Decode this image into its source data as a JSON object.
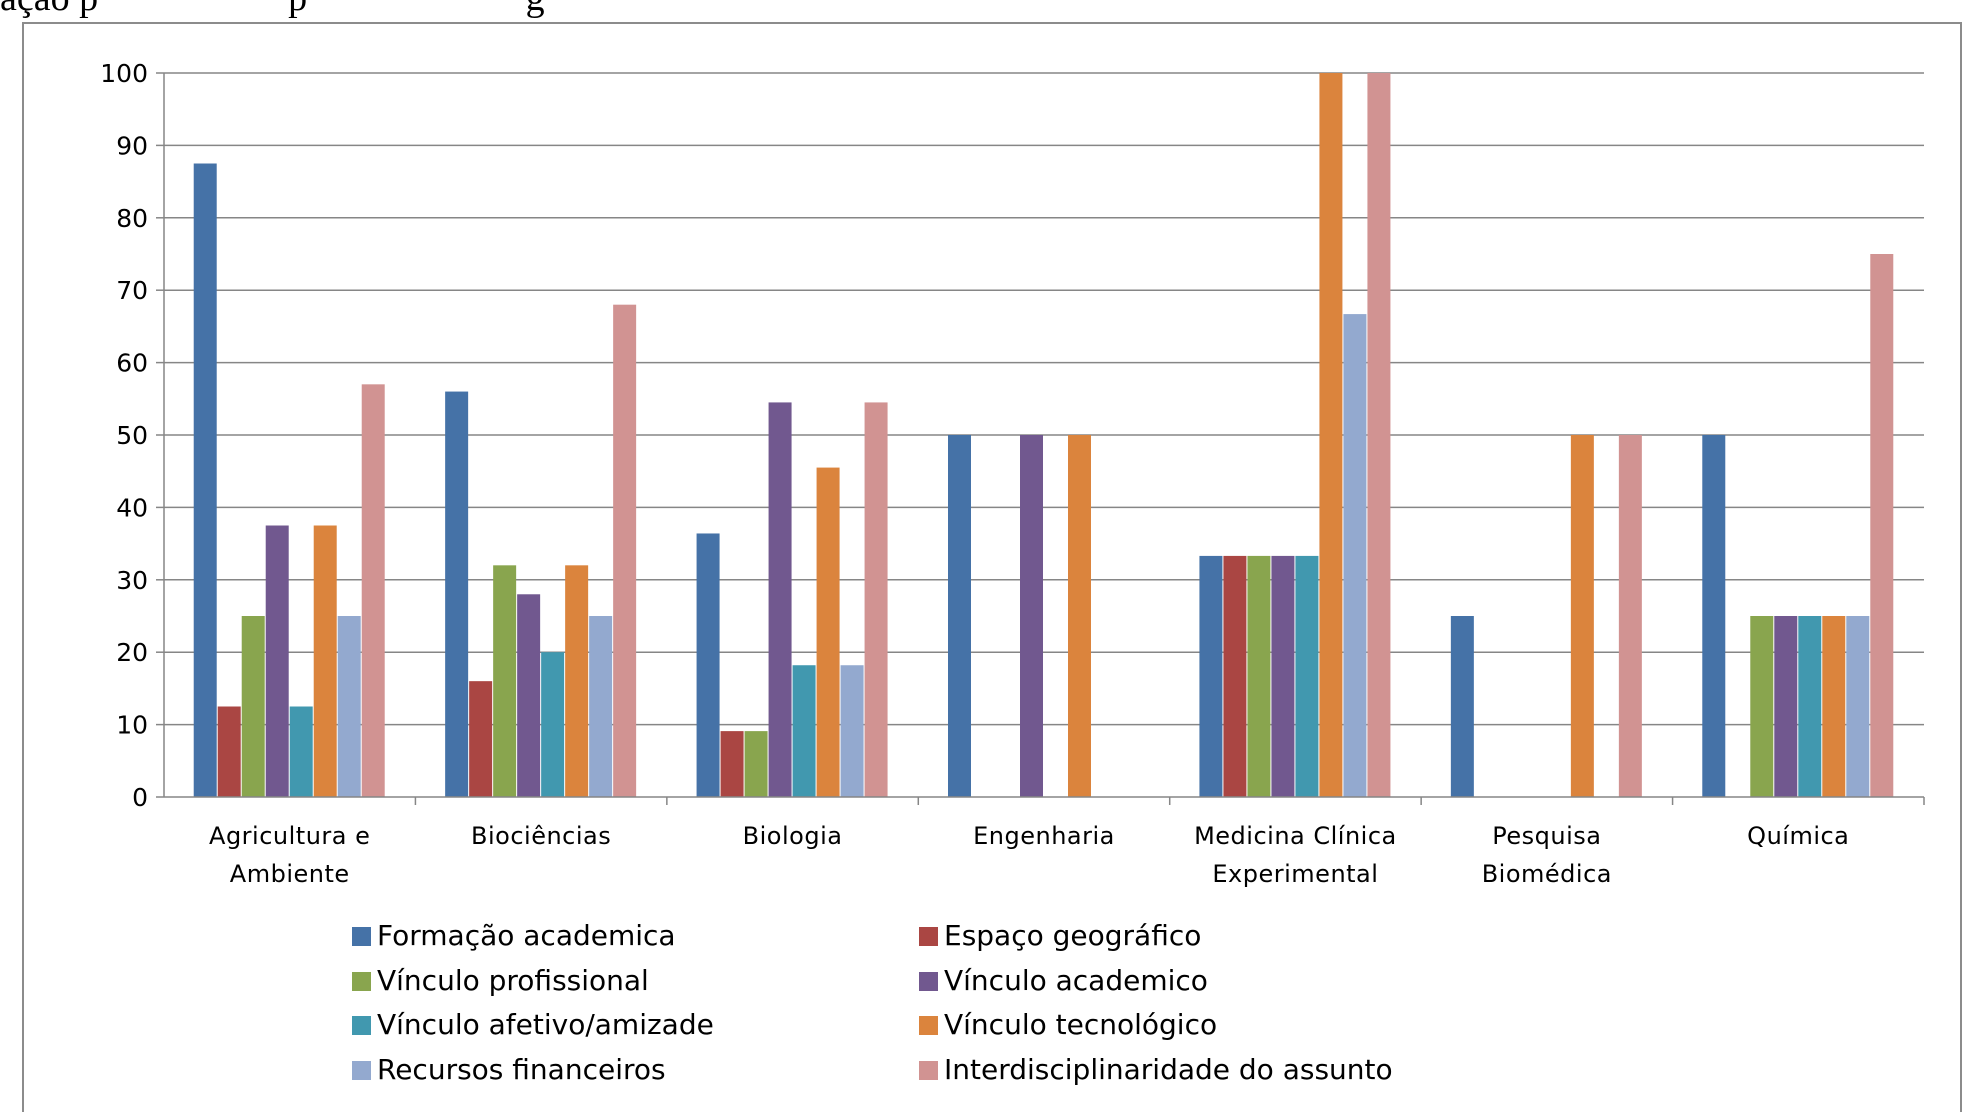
{
  "caption": {
    "visible_fragment": "ação p                    p                       g"
  },
  "chart_data": {
    "type": "bar",
    "title": "",
    "xlabel": "",
    "ylabel": "",
    "ylim": [
      0,
      100
    ],
    "yticks": [
      0,
      10,
      20,
      30,
      40,
      50,
      60,
      70,
      80,
      90,
      100
    ],
    "grid": true,
    "legend_position": "bottom",
    "categories": [
      [
        "Agricultura e",
        "Ambiente"
      ],
      [
        "Biociências"
      ],
      [
        "Biologia"
      ],
      [
        "Engenharia"
      ],
      [
        "Medicina Clínica",
        "Experimental"
      ],
      [
        "Pesquisa",
        "Biomédica"
      ],
      [
        "Química"
      ]
    ],
    "series": [
      {
        "name": "Formação academica",
        "color": "#4572A7",
        "values": [
          87.5,
          56,
          36.4,
          50,
          33.3,
          25,
          50
        ]
      },
      {
        "name": "Espaço geográfico",
        "color": "#AA4643",
        "values": [
          12.5,
          16,
          9.1,
          0,
          33.3,
          0,
          0
        ]
      },
      {
        "name": "Vínculo profissional",
        "color": "#89A54E",
        "values": [
          25,
          32,
          9.1,
          0,
          33.3,
          0,
          25
        ]
      },
      {
        "name": "Vínculo academico",
        "color": "#71588F",
        "values": [
          37.5,
          28,
          54.5,
          50,
          33.3,
          0,
          25
        ]
      },
      {
        "name": "Vínculo afetivo/amizade",
        "color": "#4198AF",
        "values": [
          12.5,
          20,
          18.2,
          0,
          33.3,
          0,
          25
        ]
      },
      {
        "name": "Vínculo tecnológico",
        "color": "#DB843D",
        "values": [
          37.5,
          32,
          45.5,
          50,
          100,
          50,
          25
        ]
      },
      {
        "name": "Recursos financeiros",
        "color": "#93A9CF",
        "values": [
          25,
          25,
          18.2,
          0,
          66.7,
          0,
          25
        ]
      },
      {
        "name": "Interdisciplinaridade do assunto",
        "color": "#D19392",
        "values": [
          57,
          68,
          54.5,
          0,
          100,
          50,
          75
        ]
      }
    ]
  }
}
